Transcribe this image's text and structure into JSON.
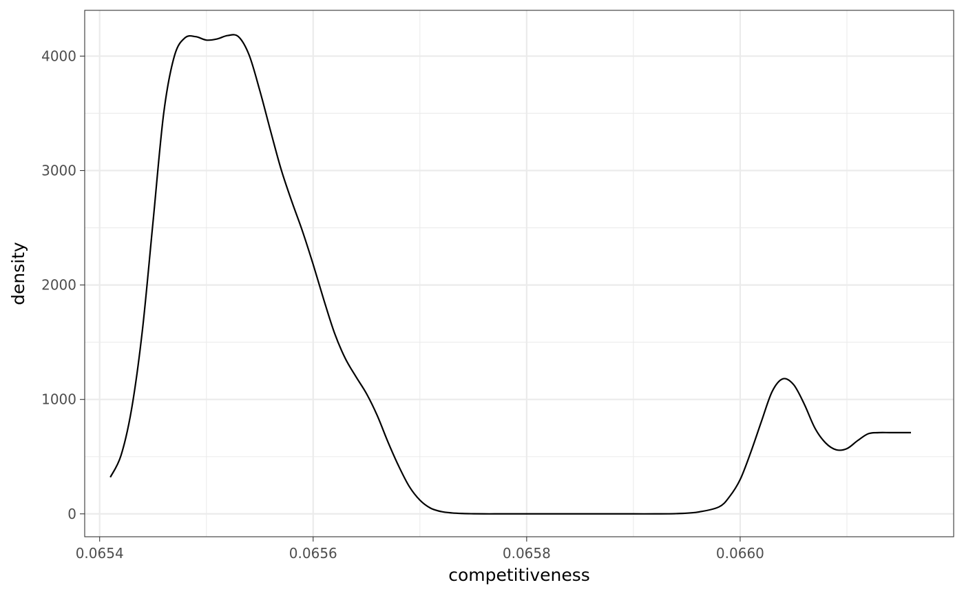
{
  "chart_data": {
    "type": "line",
    "title": "",
    "xlabel": "competitiveness",
    "ylabel": "density",
    "xlim": [
      0.065386,
      0.0662
    ],
    "ylim": [
      -200,
      4400
    ],
    "grid": true,
    "x_major_ticks": [
      0.0654,
      0.0656,
      0.0658,
      0.066
    ],
    "x_tick_labels": [
      "0.0654",
      "0.0656",
      "0.0658",
      "0.0660"
    ],
    "x_minor_ticks": [
      0.0655,
      0.0657,
      0.0659,
      0.0661
    ],
    "y_major_ticks": [
      0,
      1000,
      2000,
      3000,
      4000
    ],
    "y_tick_labels": [
      "0",
      "1000",
      "2000",
      "3000",
      "4000"
    ],
    "y_minor_ticks": [
      500,
      1500,
      2500,
      3500
    ],
    "line_color": "#000000",
    "series": [
      {
        "x": [
          0.06541,
          0.06542,
          0.06543,
          0.06544,
          0.06545,
          0.06546,
          0.06547,
          0.06548,
          0.06549,
          0.0655,
          0.06551,
          0.06552,
          0.06553,
          0.06554,
          0.06555,
          0.06556,
          0.06557,
          0.06558,
          0.06559,
          0.0656,
          0.06561,
          0.06562,
          0.06563,
          0.06564,
          0.06565,
          0.06566,
          0.06567,
          0.06568,
          0.06569,
          0.0657,
          0.06571,
          0.06572,
          0.06573,
          0.06574,
          0.06575,
          0.06576,
          0.06577,
          0.06578,
          0.06579,
          0.0658,
          0.06582,
          0.06584,
          0.06586,
          0.06588,
          0.0659,
          0.06592,
          0.06594,
          0.06596,
          0.06598,
          0.06599,
          0.066,
          0.06601,
          0.06602,
          0.06603,
          0.06604,
          0.06605,
          0.06606,
          0.06607,
          0.06608,
          0.06609,
          0.0661,
          0.06611,
          0.06612,
          0.06613,
          0.06614,
          0.06615,
          0.06616
        ],
        "y": [
          320,
          510,
          920,
          1600,
          2550,
          3500,
          4000,
          4160,
          4170,
          4140,
          4150,
          4180,
          4170,
          4010,
          3700,
          3350,
          3010,
          2730,
          2470,
          2180,
          1870,
          1580,
          1360,
          1200,
          1050,
          860,
          630,
          420,
          240,
          120,
          50,
          20,
          8,
          3,
          1,
          0,
          0,
          0,
          0,
          0,
          0,
          0,
          0,
          0,
          0,
          0,
          2,
          15,
          60,
          150,
          300,
          540,
          810,
          1070,
          1180,
          1130,
          960,
          750,
          620,
          560,
          570,
          640,
          700,
          710,
          710,
          710,
          710
        ]
      }
    ]
  }
}
